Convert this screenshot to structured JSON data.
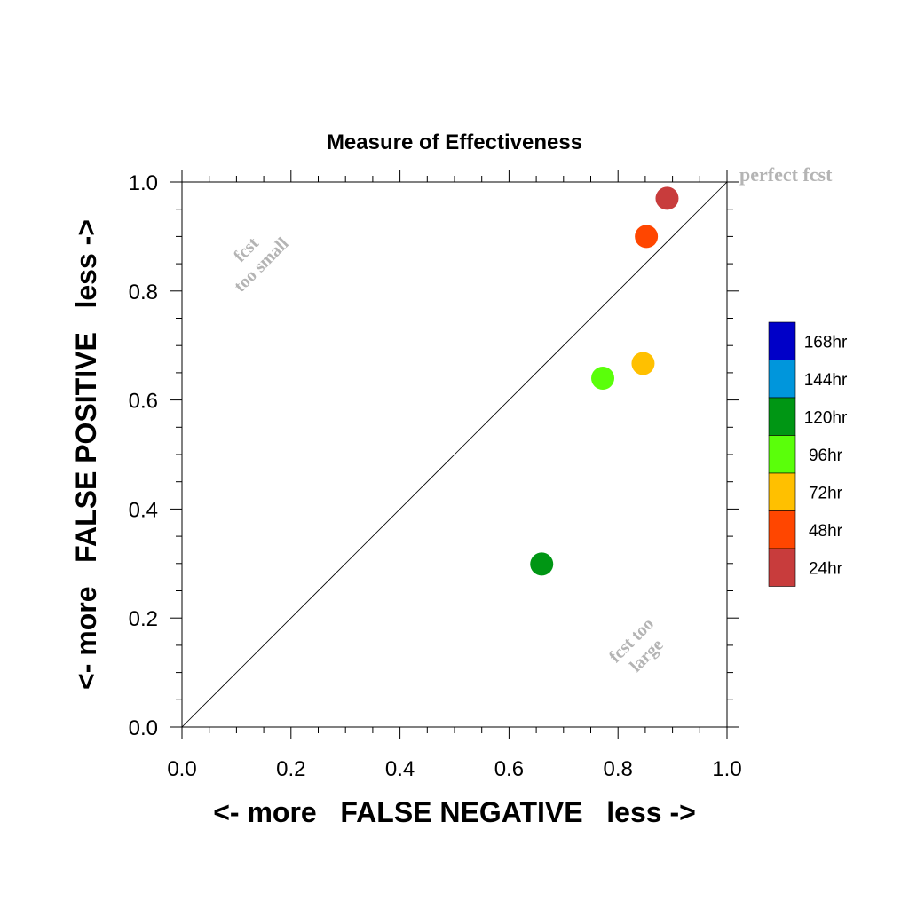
{
  "chart_data": {
    "type": "scatter",
    "title": "Measure of Effectiveness",
    "xlabel": "<- more   FALSE NEGATIVE   less ->",
    "ylabel": "<- more   FALSE POSITIVE   less ->",
    "xlim": [
      0,
      1
    ],
    "ylim": [
      0,
      1
    ],
    "x_ticks": [
      "0.0",
      "0.2",
      "0.4",
      "0.6",
      "0.8",
      "1.0"
    ],
    "y_ticks": [
      "0.0",
      "0.2",
      "0.4",
      "0.6",
      "0.8",
      "1.0"
    ],
    "x_tick_values": [
      0,
      0.2,
      0.4,
      0.6,
      0.8,
      1.0
    ],
    "y_tick_values": [
      0,
      0.2,
      0.4,
      0.6,
      0.8,
      1.0
    ],
    "grid": false,
    "diagonal_reference_line": true,
    "annotations": {
      "perfect": "perfect fcst",
      "too_small_line1": "fcst",
      "too_small_line2": "too small",
      "too_large_line1": "fcst too",
      "too_large_line2": "large"
    },
    "legend_placement": "right",
    "legend": [
      {
        "label": "168hr",
        "color": "#0000c8"
      },
      {
        "label": "144hr",
        "color": "#0096dc"
      },
      {
        "label": "120hr",
        "color": "#009614"
      },
      {
        "label": "96hr",
        "color": "#5aff0a"
      },
      {
        "label": "72hr",
        "color": "#ffc000"
      },
      {
        "label": "48hr",
        "color": "#ff4600"
      },
      {
        "label": "24hr",
        "color": "#c83c3c"
      }
    ],
    "points": [
      {
        "label": "24hr",
        "x": 0.89,
        "y": 0.97,
        "color": "#c83c3c"
      },
      {
        "label": "48hr",
        "x": 0.852,
        "y": 0.9,
        "color": "#ff4600"
      },
      {
        "label": "72hr",
        "x": 0.846,
        "y": 0.667,
        "color": "#ffc000"
      },
      {
        "label": "96hr",
        "x": 0.772,
        "y": 0.64,
        "color": "#5aff0a"
      },
      {
        "label": "120hr",
        "x": 0.66,
        "y": 0.299,
        "color": "#009614"
      }
    ]
  }
}
